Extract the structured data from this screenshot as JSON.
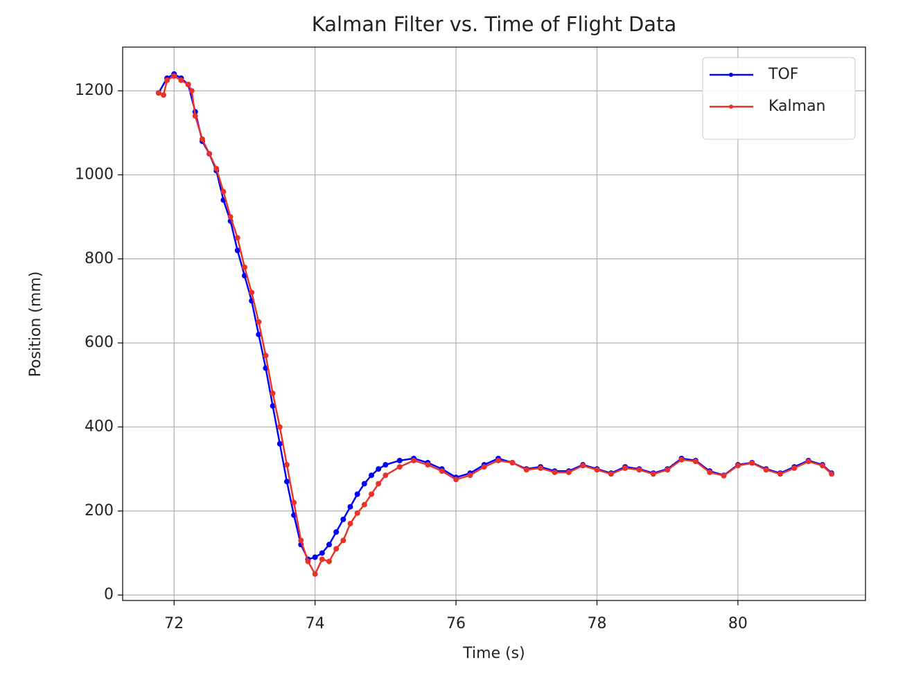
{
  "chart_data": {
    "type": "line",
    "title": "Kalman Filter vs. Time of Flight Data",
    "xlabel": "Time (s)",
    "ylabel": "Position (mm)",
    "xlim": [
      71.27,
      81.81
    ],
    "ylim": [
      -13,
      1304
    ],
    "xticks": [
      72,
      74,
      76,
      78,
      80
    ],
    "yticks": [
      0,
      200,
      400,
      600,
      800,
      1000,
      1200
    ],
    "grid": true,
    "legend": "upper right",
    "series": [
      {
        "name": "TOF",
        "color": "#0000ff",
        "x": [
          71.78,
          71.9,
          72.0,
          72.1,
          72.2,
          72.3,
          72.4,
          72.5,
          72.6,
          72.7,
          72.8,
          72.9,
          73.0,
          73.1,
          73.2,
          73.3,
          73.4,
          73.5,
          73.6,
          73.7,
          73.8,
          73.9,
          74.0,
          74.1,
          74.2,
          74.3,
          74.4,
          74.5,
          74.6,
          74.7,
          74.8,
          74.9,
          75.0,
          75.2,
          75.4,
          75.6,
          75.8,
          76.0,
          76.2,
          76.4,
          76.6,
          76.8,
          77.0,
          77.2,
          77.4,
          77.6,
          77.8,
          78.0,
          78.2,
          78.4,
          78.6,
          78.8,
          79.0,
          79.2,
          79.4,
          79.6,
          79.8,
          80.0,
          80.2,
          80.4,
          80.6,
          80.8,
          81.0,
          81.2,
          81.33
        ],
        "values": [
          1195,
          1230,
          1240,
          1230,
          1215,
          1150,
          1080,
          1050,
          1010,
          940,
          890,
          820,
          760,
          700,
          620,
          540,
          450,
          360,
          270,
          190,
          120,
          85,
          90,
          100,
          120,
          150,
          180,
          210,
          240,
          265,
          285,
          300,
          310,
          320,
          325,
          315,
          300,
          280,
          290,
          310,
          325,
          315,
          300,
          305,
          295,
          295,
          310,
          300,
          290,
          305,
          300,
          290,
          300,
          325,
          320,
          295,
          285,
          310,
          315,
          300,
          290,
          305,
          320,
          310,
          290
        ]
      },
      {
        "name": "Kalman",
        "color": "#e8332a",
        "x": [
          71.78,
          71.85,
          71.9,
          72.0,
          72.1,
          72.2,
          72.25,
          72.3,
          72.4,
          72.5,
          72.6,
          72.7,
          72.8,
          72.9,
          73.0,
          73.1,
          73.2,
          73.3,
          73.4,
          73.5,
          73.6,
          73.7,
          73.8,
          73.9,
          74.0,
          74.1,
          74.2,
          74.3,
          74.4,
          74.5,
          74.6,
          74.7,
          74.8,
          74.9,
          75.0,
          75.2,
          75.4,
          75.6,
          75.8,
          76.0,
          76.2,
          76.4,
          76.6,
          76.8,
          77.0,
          77.2,
          77.4,
          77.6,
          77.8,
          78.0,
          78.2,
          78.4,
          78.6,
          78.8,
          79.0,
          79.2,
          79.4,
          79.6,
          79.8,
          80.0,
          80.2,
          80.4,
          80.6,
          80.8,
          81.0,
          81.2,
          81.33
        ],
        "values": [
          1195,
          1190,
          1225,
          1235,
          1225,
          1215,
          1200,
          1140,
          1085,
          1050,
          1015,
          960,
          900,
          850,
          780,
          720,
          650,
          570,
          480,
          400,
          310,
          220,
          130,
          80,
          50,
          85,
          80,
          110,
          130,
          170,
          195,
          215,
          240,
          265,
          285,
          305,
          320,
          310,
          295,
          275,
          285,
          305,
          320,
          315,
          298,
          302,
          292,
          292,
          308,
          298,
          288,
          302,
          298,
          288,
          298,
          322,
          318,
          292,
          284,
          308,
          314,
          298,
          288,
          302,
          318,
          308,
          288
        ]
      }
    ]
  }
}
